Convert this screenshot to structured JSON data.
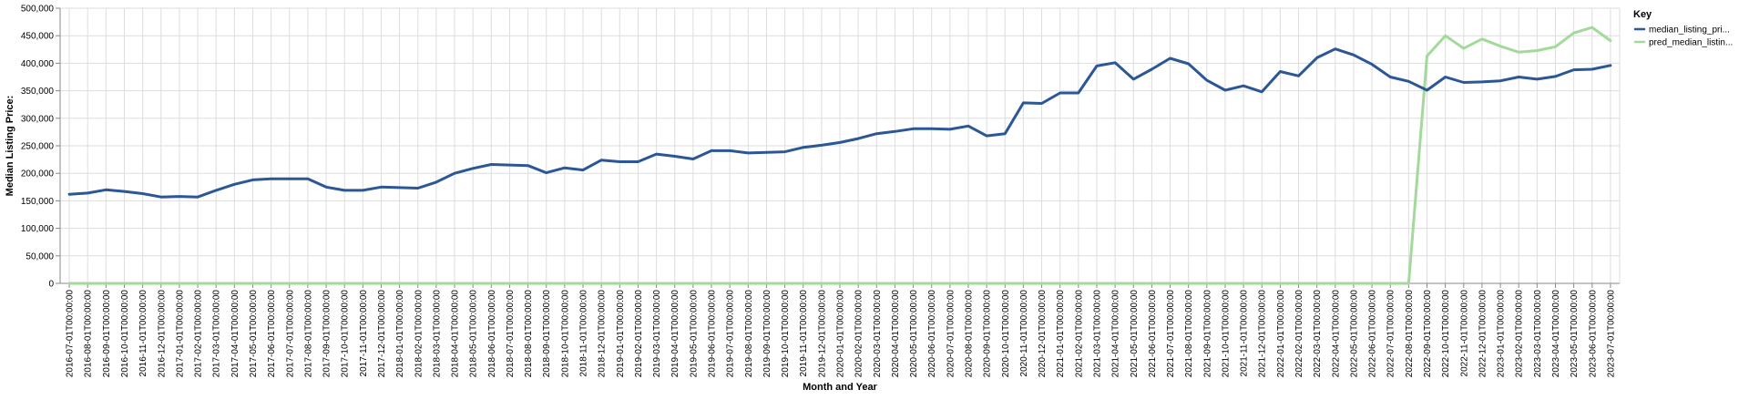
{
  "chart_data": {
    "type": "line",
    "title": "",
    "xlabel": "Month and Year",
    "ylabel": "Median Listing Price:",
    "ylim": [
      0,
      500000
    ],
    "yticks": [
      "0",
      "50,000",
      "100,000",
      "150,000",
      "200,000",
      "250,000",
      "300,000",
      "350,000",
      "400,000",
      "450,000",
      "500,000"
    ],
    "grid": true,
    "legend": {
      "title": "Key",
      "position": "top-right"
    },
    "x": [
      "2016-07-01T00:00:00",
      "2016-08-01T00:00:00",
      "2016-09-01T00:00:00",
      "2016-10-01T00:00:00",
      "2016-11-01T00:00:00",
      "2016-12-01T00:00:00",
      "2017-01-01T00:00:00",
      "2017-02-01T00:00:00",
      "2017-03-01T00:00:00",
      "2017-04-01T00:00:00",
      "2017-05-01T00:00:00",
      "2017-06-01T00:00:00",
      "2017-07-01T00:00:00",
      "2017-08-01T00:00:00",
      "2017-09-01T00:00:00",
      "2017-10-01T00:00:00",
      "2017-11-01T00:00:00",
      "2017-12-01T00:00:00",
      "2018-01-01T00:00:00",
      "2018-02-01T00:00:00",
      "2018-03-01T00:00:00",
      "2018-04-01T00:00:00",
      "2018-05-01T00:00:00",
      "2018-06-01T00:00:00",
      "2018-07-01T00:00:00",
      "2018-08-01T00:00:00",
      "2018-09-01T00:00:00",
      "2018-10-01T00:00:00",
      "2018-11-01T00:00:00",
      "2018-12-01T00:00:00",
      "2019-01-01T00:00:00",
      "2019-02-01T00:00:00",
      "2019-03-01T00:00:00",
      "2019-04-01T00:00:00",
      "2019-05-01T00:00:00",
      "2019-06-01T00:00:00",
      "2019-07-01T00:00:00",
      "2019-08-01T00:00:00",
      "2019-09-01T00:00:00",
      "2019-10-01T00:00:00",
      "2019-11-01T00:00:00",
      "2019-12-01T00:00:00",
      "2020-01-01T00:00:00",
      "2020-02-01T00:00:00",
      "2020-03-01T00:00:00",
      "2020-04-01T00:00:00",
      "2020-05-01T00:00:00",
      "2020-06-01T00:00:00",
      "2020-07-01T00:00:00",
      "2020-08-01T00:00:00",
      "2020-09-01T00:00:00",
      "2020-10-01T00:00:00",
      "2020-11-01T00:00:00",
      "2020-12-01T00:00:00",
      "2021-01-01T00:00:00",
      "2021-02-01T00:00:00",
      "2021-03-01T00:00:00",
      "2021-04-01T00:00:00",
      "2021-05-01T00:00:00",
      "2021-06-01T00:00:00",
      "2021-07-01T00:00:00",
      "2021-08-01T00:00:00",
      "2021-09-01T00:00:00",
      "2021-10-01T00:00:00",
      "2021-11-01T00:00:00",
      "2021-12-01T00:00:00",
      "2022-01-01T00:00:00",
      "2022-02-01T00:00:00",
      "2022-03-01T00:00:00",
      "2022-04-01T00:00:00",
      "2022-05-01T00:00:00",
      "2022-06-01T00:00:00",
      "2022-07-01T00:00:00",
      "2022-08-01T00:00:00",
      "2022-09-01T00:00:00",
      "2022-10-01T00:00:00",
      "2022-11-01T00:00:00",
      "2022-12-01T00:00:00",
      "2023-01-01T00:00:00",
      "2023-02-01T00:00:00",
      "2023-03-01T00:00:00",
      "2023-04-01T00:00:00",
      "2023-05-01T00:00:00",
      "2023-06-01T00:00:00",
      "2023-07-01T00:00:00"
    ],
    "series": [
      {
        "name": "median_listing_pri...",
        "color": "#2b5797",
        "values": [
          162000,
          164000,
          170000,
          167000,
          163000,
          157000,
          158000,
          157000,
          169000,
          180000,
          188000,
          190000,
          190000,
          190000,
          175000,
          169000,
          169000,
          175000,
          174000,
          173000,
          184000,
          200000,
          209000,
          216000,
          215000,
          214000,
          201000,
          210000,
          206000,
          224000,
          221000,
          221000,
          235000,
          231000,
          226000,
          241000,
          241000,
          237000,
          238000,
          239000,
          247000,
          251000,
          256000,
          263000,
          272000,
          276000,
          281000,
          281000,
          280000,
          286000,
          268000,
          272000,
          328000,
          327000,
          346000,
          346000,
          395000,
          401000,
          371000,
          389000,
          409000,
          399000,
          369000,
          351000,
          359000,
          348000,
          385000,
          377000,
          410000,
          426000,
          415000,
          398000,
          375000,
          367000,
          351000,
          375000,
          365000,
          366000,
          368000,
          375000,
          371000,
          376000,
          388000,
          389000,
          396000
        ]
      },
      {
        "name": "pred_median_listin...",
        "color": "#a3d99b",
        "values": [
          0,
          0,
          0,
          0,
          0,
          0,
          0,
          0,
          0,
          0,
          0,
          0,
          0,
          0,
          0,
          0,
          0,
          0,
          0,
          0,
          0,
          0,
          0,
          0,
          0,
          0,
          0,
          0,
          0,
          0,
          0,
          0,
          0,
          0,
          0,
          0,
          0,
          0,
          0,
          0,
          0,
          0,
          0,
          0,
          0,
          0,
          0,
          0,
          0,
          0,
          0,
          0,
          0,
          0,
          0,
          0,
          0,
          0,
          0,
          0,
          0,
          0,
          0,
          0,
          0,
          0,
          0,
          0,
          0,
          0,
          0,
          0,
          0,
          0,
          413000,
          450000,
          427000,
          444000,
          431000,
          420000,
          423000,
          430000,
          455000,
          465000,
          441000
        ]
      }
    ]
  }
}
